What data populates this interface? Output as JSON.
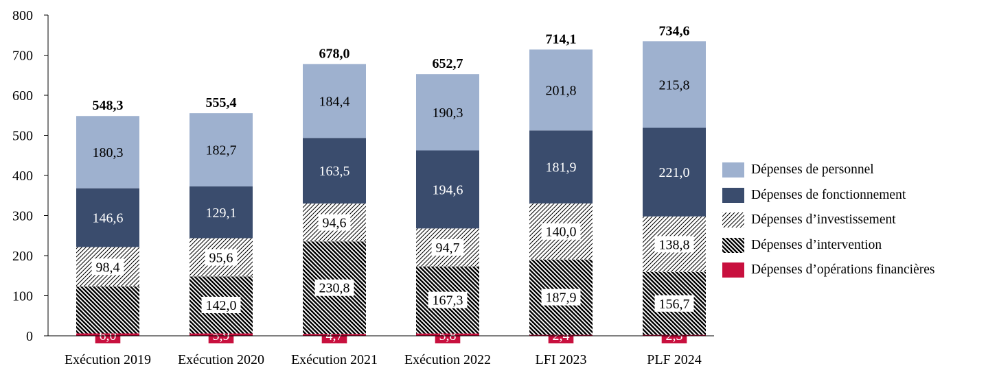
{
  "chart_data": {
    "type": "bar",
    "stacked": true,
    "categories": [
      "Exécution 2019",
      "Exécution 2020",
      "Exécution 2021",
      "Exécution 2022",
      "LFI 2023",
      "PLF 2024"
    ],
    "ylim": [
      0,
      800
    ],
    "yticks": [
      "0",
      "100",
      "200",
      "300",
      "400",
      "500",
      "600",
      "700",
      "800"
    ],
    "totals": [
      "548,3",
      "555,4",
      "678,0",
      "652,7",
      "714,1",
      "734,6"
    ],
    "legend_position": "right",
    "grid": false,
    "series": [
      {
        "name": "Dépenses d’opérations financières",
        "fill": "solid",
        "color": "#c8103e",
        "values": [
          6.0,
          5.9,
          4.7,
          5.8,
          2.4,
          2.3
        ],
        "labels": [
          "6,0",
          "5,9",
          "4,7",
          "5,8",
          "2,4",
          "2,3"
        ]
      },
      {
        "name": "Dépenses d’intervention",
        "fill": "dense-hatch",
        "color": "#000000",
        "values": [
          117.0,
          142.0,
          230.8,
          167.3,
          187.9,
          156.7
        ],
        "labels": [
          "",
          "142,0",
          "230,8",
          "167,3",
          "187,9",
          "156,7"
        ]
      },
      {
        "name": "Dépenses d’investissement",
        "fill": "light-hatch",
        "color": "#000000",
        "values": [
          98.4,
          95.6,
          94.6,
          94.7,
          140.0,
          138.8
        ],
        "labels": [
          "98,4",
          "95,6",
          "94,6",
          "94,7",
          "140,0",
          "138,8"
        ]
      },
      {
        "name": "Dépenses de fonctionnement",
        "fill": "solid",
        "color": "#3a4c6d",
        "values": [
          146.6,
          129.1,
          163.5,
          194.6,
          181.9,
          221.0
        ],
        "labels": [
          "146,6",
          "129,1",
          "163,5",
          "194,6",
          "181,9",
          "221,0"
        ]
      },
      {
        "name": "Dépenses de personnel",
        "fill": "solid",
        "color": "#9eb1cf",
        "values": [
          180.3,
          182.7,
          184.4,
          190.3,
          201.8,
          215.8
        ],
        "labels": [
          "180,3",
          "182,7",
          "184,4",
          "190,3",
          "201,8",
          "215,8"
        ]
      }
    ],
    "legend_order": [
      4,
      3,
      2,
      1,
      0
    ]
  }
}
